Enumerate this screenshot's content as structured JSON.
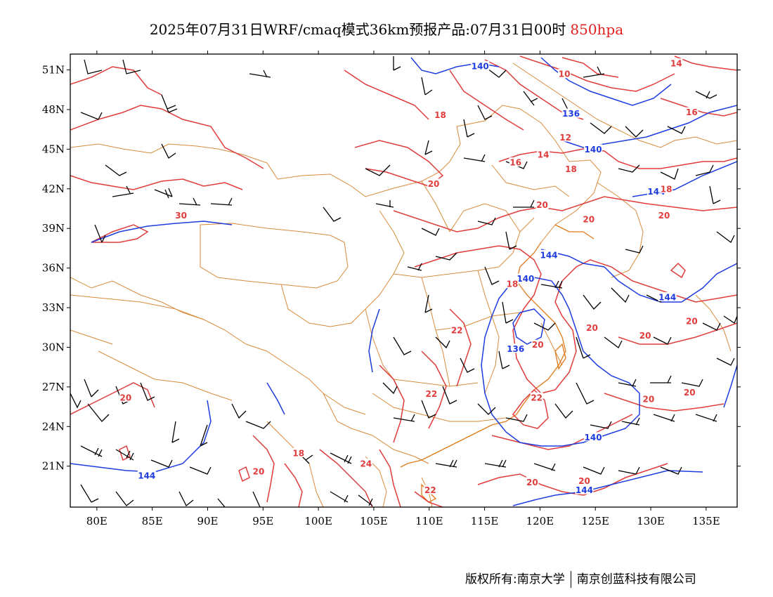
{
  "title": {
    "main": "2025年07月31日WRF/cmaq模式36km预报产品:07月31日00时",
    "level": "850hpa",
    "level_color": "#e02020"
  },
  "axes": {
    "lat_labels": [
      "51N",
      "48N",
      "45N",
      "42N",
      "39N",
      "36N",
      "33N",
      "30N",
      "27N",
      "24N",
      "21N"
    ],
    "lon_labels": [
      "80E",
      "85E",
      "90E",
      "95E",
      "100E",
      "105E",
      "110E",
      "115E",
      "120E",
      "125E",
      "130E",
      "135E"
    ]
  },
  "colors": {
    "temperature_contour": "#e03c3c",
    "height_contour": "#1e3ce0",
    "boundary": "#d98a3a",
    "wind_barb": "#000000"
  },
  "height_labels": [
    {
      "text": "140",
      "lon": 114.6,
      "lat": 51.3
    },
    {
      "text": "136",
      "lon": 122.8,
      "lat": 47.7
    },
    {
      "text": "140",
      "lon": 124.8,
      "lat": 45.0
    },
    {
      "text": "144",
      "lon": 130.5,
      "lat": 41.8
    },
    {
      "text": "144",
      "lon": 120.8,
      "lat": 37.0
    },
    {
      "text": "140",
      "lon": 118.7,
      "lat": 35.2
    },
    {
      "text": "144",
      "lon": 131.5,
      "lat": 33.8
    },
    {
      "text": "136",
      "lon": 117.8,
      "lat": 29.9
    },
    {
      "text": "140",
      "lon": 124.8,
      "lat": 23.2
    },
    {
      "text": "144",
      "lon": 84.5,
      "lat": 20.3
    },
    {
      "text": "144",
      "lon": 124.0,
      "lat": 19.2
    }
  ],
  "temperature_labels": [
    {
      "text": "10",
      "lon": 122.2,
      "lat": 50.7
    },
    {
      "text": "14",
      "lon": 132.3,
      "lat": 51.5
    },
    {
      "text": "16",
      "lon": 133.7,
      "lat": 47.8
    },
    {
      "text": "18",
      "lon": 111.0,
      "lat": 47.6
    },
    {
      "text": "12",
      "lon": 122.3,
      "lat": 45.9
    },
    {
      "text": "14",
      "lon": 120.3,
      "lat": 44.6
    },
    {
      "text": "16",
      "lon": 117.8,
      "lat": 44.0
    },
    {
      "text": "18",
      "lon": 122.8,
      "lat": 43.5
    },
    {
      "text": "18",
      "lon": 131.4,
      "lat": 42.0
    },
    {
      "text": "20",
      "lon": 110.4,
      "lat": 42.4
    },
    {
      "text": "20",
      "lon": 120.2,
      "lat": 40.8
    },
    {
      "text": "20",
      "lon": 131.2,
      "lat": 40.0
    },
    {
      "text": "20",
      "lon": 124.4,
      "lat": 39.7
    },
    {
      "text": "30",
      "lon": 87.6,
      "lat": 40.0
    },
    {
      "text": "18",
      "lon": 117.5,
      "lat": 34.8
    },
    {
      "text": "22",
      "lon": 112.5,
      "lat": 31.3
    },
    {
      "text": "20",
      "lon": 124.7,
      "lat": 31.5
    },
    {
      "text": "20",
      "lon": 129.5,
      "lat": 30.9
    },
    {
      "text": "20",
      "lon": 133.7,
      "lat": 32.0
    },
    {
      "text": "20",
      "lon": 119.8,
      "lat": 30.2
    },
    {
      "text": "22",
      "lon": 110.2,
      "lat": 26.5
    },
    {
      "text": "22",
      "lon": 119.7,
      "lat": 26.2
    },
    {
      "text": "20",
      "lon": 82.6,
      "lat": 26.2
    },
    {
      "text": "20",
      "lon": 129.8,
      "lat": 26.1
    },
    {
      "text": "20",
      "lon": 133.5,
      "lat": 26.6
    },
    {
      "text": "18",
      "lon": 98.2,
      "lat": 22.0
    },
    {
      "text": "20",
      "lon": 94.6,
      "lat": 20.6
    },
    {
      "text": "24",
      "lon": 104.3,
      "lat": 21.2
    },
    {
      "text": "22",
      "lon": 110.1,
      "lat": 19.2
    },
    {
      "text": "20",
      "lon": 119.3,
      "lat": 19.8
    },
    {
      "text": "20",
      "lon": 124.0,
      "lat": 19.9
    }
  ],
  "copyright": {
    "left": "版权所有:南京大学",
    "right": "南京创蓝科技有限公司"
  }
}
